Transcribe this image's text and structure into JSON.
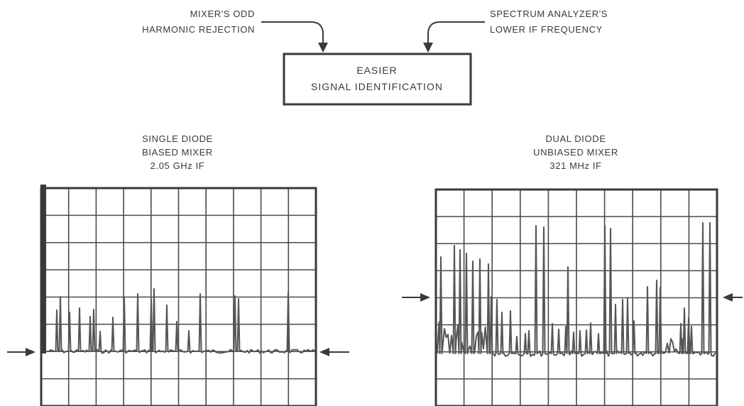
{
  "top_labels": {
    "left_line1": "MIXER'S ODD",
    "left_line2": "HARMONIC REJECTION",
    "right_line1": "SPECTRUM ANALYZER'S",
    "right_line2": "LOWER IF FREQUENCY"
  },
  "result_box": {
    "line1": "EASIER",
    "line2": "SIGNAL IDENTIFICATION"
  },
  "panels": [
    {
      "title_line1": "SINGLE DIODE",
      "title_line2": "BIASED MIXER",
      "title_line3": "2.05 GHz IF"
    },
    {
      "title_line1": "DUAL DIODE",
      "title_line2": "UNBIASED MIXER",
      "title_line3": "321 MHz IF"
    }
  ],
  "colors": {
    "ink": "#3a3a3a",
    "grid": "#4a4a4a",
    "trace": "#555555",
    "background": "#ffffff"
  }
}
